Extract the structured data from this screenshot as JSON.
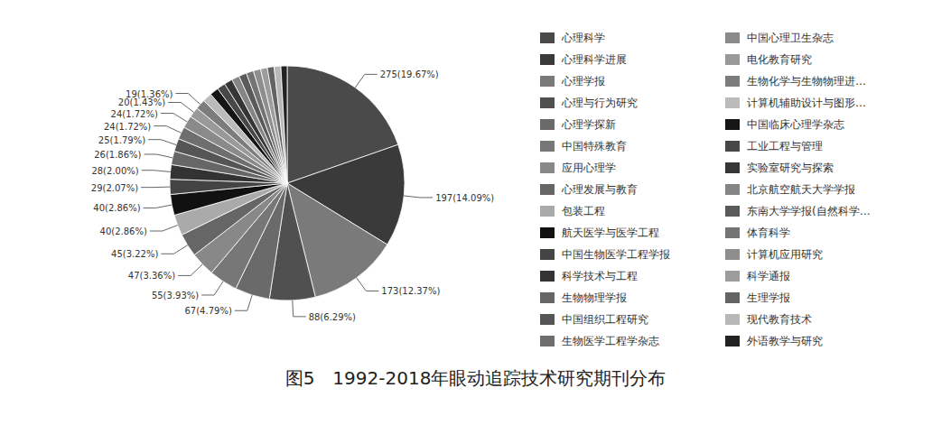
{
  "chart_data": {
    "type": "pie",
    "title": "图5　1992-2018年眼动追踪技术研究期刊分布",
    "categories": [
      "心理科学",
      "心理科学进展",
      "心理学报",
      "心理与行为研究",
      "心理学探新",
      "中国特殊教育",
      "应用心理学",
      "心理发展与教育",
      "包装工程",
      "航天医学与医学工程",
      "中国生物医学工程学报",
      "科学技术与工程",
      "生物物理学报",
      "中国组织工程研究",
      "生物医学工程学杂志",
      "中国心理卫生杂志",
      "电化教育研究",
      "生物化学与生物物理进…",
      "计算机辅助设计与图形…",
      "中国临床心理学杂志",
      "工业工程与管理",
      "实验室研究与探索",
      "北京航空航天大学学报",
      "东南大学学报(自然科学…",
      "体育科学",
      "计算机应用研究",
      "科学通报",
      "生理学报",
      "现代教育技术",
      "外语教学与研究"
    ],
    "values": [
      275,
      197,
      173,
      88,
      67,
      55,
      47,
      45,
      40,
      40,
      29,
      28,
      26,
      25,
      24,
      24,
      20,
      19,
      18,
      17,
      16,
      16,
      15,
      15,
      14,
      14,
      13,
      13,
      13,
      12
    ],
    "value_labels": [
      "275(19.67%)",
      "197(14.09%)",
      "173(12.37%)",
      "88(6.29%)",
      "67(4.79%)",
      "55(3.93%)",
      "47(3.36%)",
      "45(3.22%)",
      "40(2.86%)",
      "40(2.86%)",
      "29(2.07%)",
      "28(2.00%)",
      "26(1.86%)",
      "25(1.79%)",
      "24(1.72%)",
      "24(1.72%)",
      "20(1.43%)",
      "19(1.36%)",
      null,
      null,
      null,
      null,
      null,
      null,
      null,
      null,
      null,
      null,
      null,
      null
    ],
    "colors": [
      "#4a4a4a",
      "#3a3a3a",
      "#7a7a7a",
      "#505050",
      "#6a6a6a",
      "#777777",
      "#888888",
      "#666666",
      "#aaaaaa",
      "#111111",
      "#444444",
      "#333333",
      "#666666",
      "#555555",
      "#6e6e6e",
      "#8a8a8a",
      "#999999",
      "#7c7c7c",
      "#bbbbbb",
      "#151515",
      "#474747",
      "#363636",
      "#858585",
      "#5a5a5a",
      "#747474",
      "#8e8e8e",
      "#9c9c9c",
      "#636363",
      "#b8b8b8",
      "#222222"
    ],
    "data_labels": true,
    "legend": "right"
  }
}
